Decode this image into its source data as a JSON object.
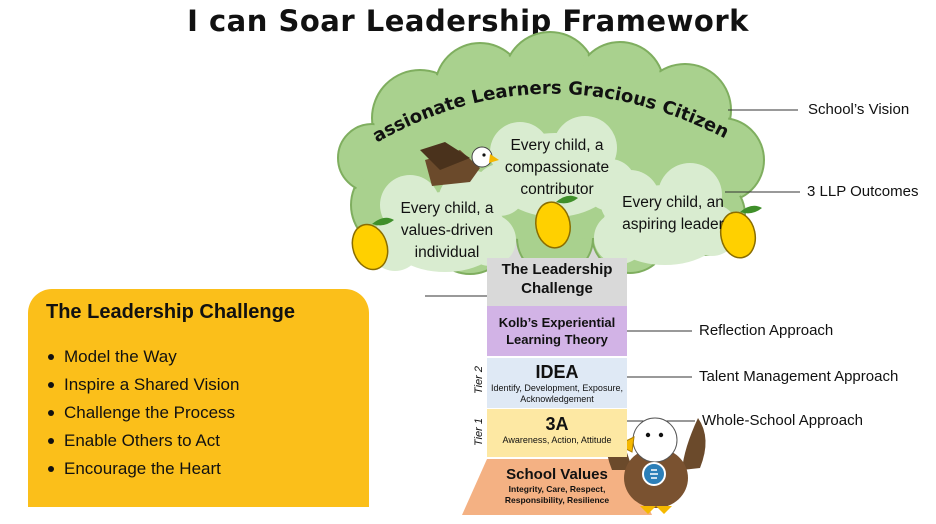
{
  "title": "I can Soar Leadership Framework",
  "vision": "Passionate Learners Gracious Citizens",
  "outcomes": [
    "Every child, a compassionate contributor",
    "Every child, a values-driven individual",
    "Every child, an aspiring leader"
  ],
  "tiers": {
    "leadership_challenge": "The Leadership Challenge",
    "kolb": "Kolb’s Experiential Learning Theory",
    "idea": {
      "title": "IDEA",
      "sub": "Identify, Development, Exposure, Acknowledgement"
    },
    "three_a": {
      "title": "3A",
      "sub": "Awareness, Action, Attitude"
    },
    "school_values": {
      "title": "School Values",
      "sub": "Integrity, Care, Respect, Responsibility, Resilience"
    }
  },
  "tier_labels": {
    "tier2": "Tier 2",
    "tier1": "Tier 1"
  },
  "callouts": {
    "vision": "School’s Vision",
    "outcomes": "3 LLP Outcomes",
    "reflection": "Reflection Approach",
    "talent": "Talent Management Approach",
    "whole_school": "Whole-School Approach"
  },
  "panel": {
    "title": "The Leadership Challenge",
    "items": [
      "Model the Way",
      "Inspire a Shared Vision",
      "Challenge the Process",
      "Enable Others to Act",
      "Encourage the Heart"
    ]
  },
  "colors": {
    "canopy": "#a9d18e",
    "inner_cloud": "#d9ecd0",
    "panel": "#fbbf1a",
    "kolb": "#d2b3e6",
    "idea": "#dfe9f5",
    "three_a": "#fde8a3",
    "school_values": "#f4b183",
    "mango": "#ffd000"
  },
  "icons": [
    "eagle-icon",
    "mango-icon",
    "eagle-mascot-icon"
  ]
}
